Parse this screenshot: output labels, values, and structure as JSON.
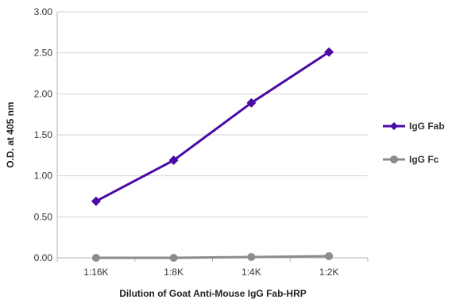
{
  "chart_data": {
    "type": "line",
    "categories": [
      "1:16K",
      "1:8K",
      "1:4K",
      "1:2K"
    ],
    "series": [
      {
        "name": "IgG Fab",
        "values": [
          0.69,
          1.19,
          1.89,
          2.51
        ],
        "color": "#4b0aa6",
        "marker": "diamond"
      },
      {
        "name": "IgG Fc",
        "values": [
          0.0,
          0.0,
          0.01,
          0.02
        ],
        "color": "#8c8c8c",
        "marker": "circle"
      }
    ],
    "title": "",
    "xlabel": "Dilution of Goat Anti-Mouse IgG Fab-HRP",
    "ylabel": "O.D. at 405 nm",
    "ylim": [
      0,
      3
    ],
    "yticks": [
      "0.00",
      "0.50",
      "1.00",
      "1.50",
      "2.00",
      "2.50",
      "3.00"
    ],
    "grid": true,
    "legend_position": "right"
  }
}
